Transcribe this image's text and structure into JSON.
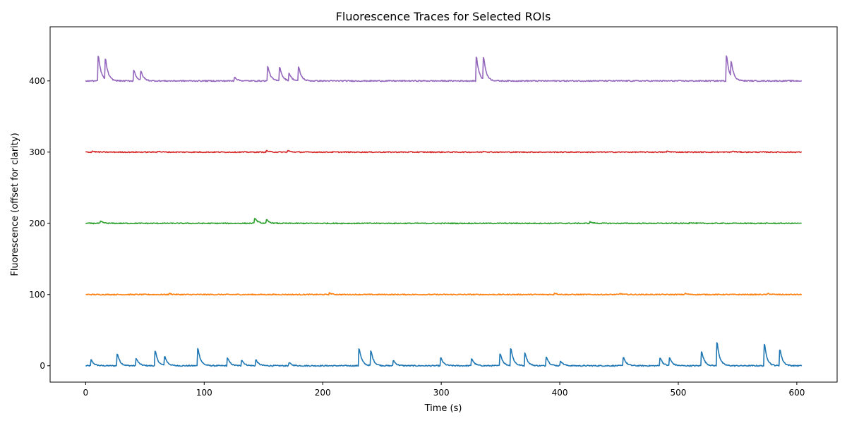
{
  "chart_data": {
    "type": "line",
    "title": "Fluorescence Traces for Selected ROIs",
    "xlabel": "Time (s)",
    "ylabel": "Fluorescence (offset for clarity)",
    "xlim": [
      -30,
      634
    ],
    "ylim": [
      -23,
      476
    ],
    "xticks": [
      0,
      100,
      200,
      300,
      400,
      500,
      600
    ],
    "yticks": [
      0,
      100,
      200,
      300,
      400
    ],
    "grid": false,
    "legend": "none",
    "x_range": [
      0,
      604
    ],
    "series": [
      {
        "color": "#1f77b4",
        "baseline": 0,
        "peaks": [
          [
            4,
            12
          ],
          [
            26,
            25
          ],
          [
            42,
            15
          ],
          [
            58,
            30
          ],
          [
            66,
            19
          ],
          [
            94,
            36
          ],
          [
            119,
            16
          ],
          [
            131,
            12
          ],
          [
            143,
            12
          ],
          [
            171,
            6
          ],
          [
            230,
            36
          ],
          [
            240,
            30
          ],
          [
            259,
            11
          ],
          [
            299,
            16
          ],
          [
            325,
            15
          ],
          [
            349,
            26
          ],
          [
            358,
            36
          ],
          [
            370,
            26
          ],
          [
            388,
            19
          ],
          [
            400,
            10
          ],
          [
            453,
            18
          ],
          [
            484,
            17
          ],
          [
            492,
            16
          ],
          [
            519,
            30
          ],
          [
            532,
            48
          ],
          [
            572,
            44
          ],
          [
            585,
            34
          ]
        ]
      },
      {
        "color": "#ff7f0e",
        "baseline": 100,
        "peaks": [
          [
            70,
            2
          ],
          [
            205,
            3
          ],
          [
            395,
            3
          ],
          [
            450,
            2
          ],
          [
            505,
            2
          ],
          [
            575,
            2
          ]
        ]
      },
      {
        "color": "#2ca02c",
        "baseline": 200,
        "peaks": [
          [
            12,
            4
          ],
          [
            142,
            11
          ],
          [
            152,
            7
          ],
          [
            425,
            3
          ],
          [
            509,
            2
          ]
        ]
      },
      {
        "color": "#d62728",
        "baseline": 300,
        "peaks": [
          [
            5,
            2
          ],
          [
            60,
            2
          ],
          [
            152,
            3
          ],
          [
            170,
            3
          ],
          [
            335,
            2
          ],
          [
            490,
            2
          ],
          [
            545,
            2
          ]
        ]
      },
      {
        "color": "#9467bd",
        "baseline": 400,
        "peaks": [
          [
            10,
            52
          ],
          [
            16,
            42
          ],
          [
            40,
            22
          ],
          [
            46,
            18
          ],
          [
            125,
            8
          ],
          [
            153,
            30
          ],
          [
            163,
            29
          ],
          [
            171,
            15
          ],
          [
            179,
            28
          ],
          [
            329,
            49
          ],
          [
            335,
            46
          ],
          [
            540,
            53
          ],
          [
            544,
            30
          ]
        ]
      }
    ]
  }
}
